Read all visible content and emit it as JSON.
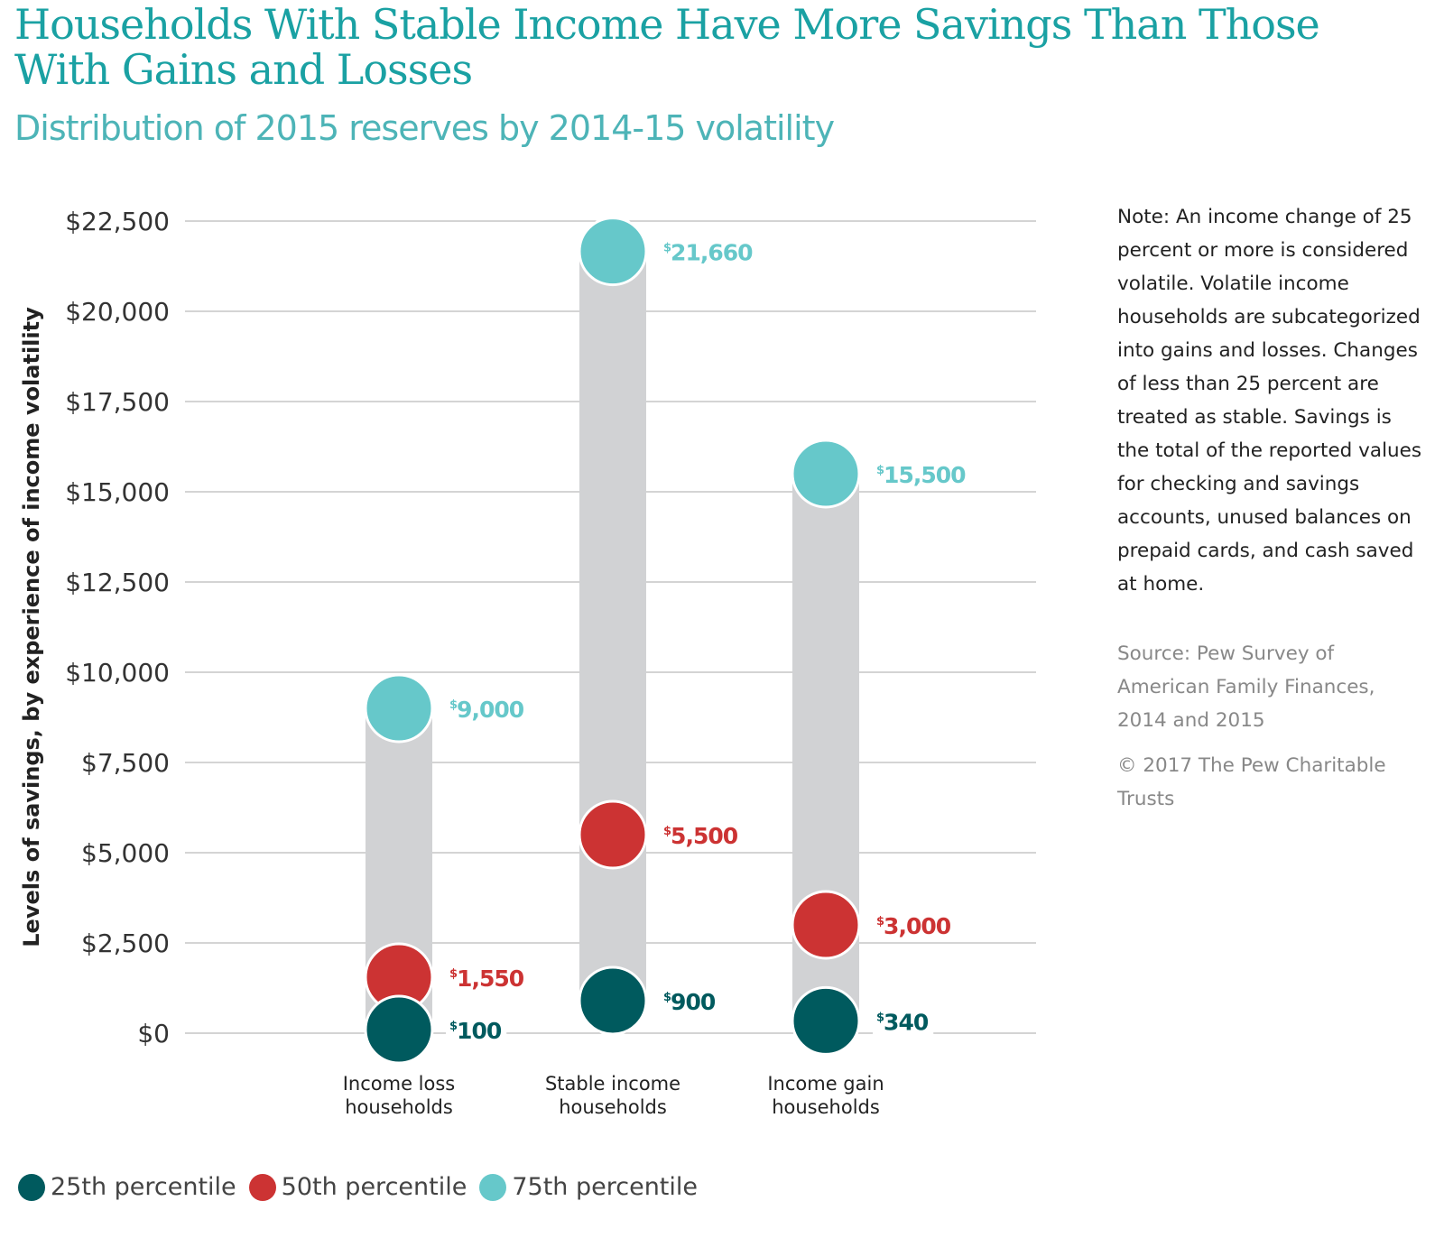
{
  "chart_data": {
    "type": "dot-range",
    "title": "Households With Stable Income Have More Savings Than Those With Gains and Losses",
    "subtitle": "Distribution of 2015 reserves by 2014-15 volatility",
    "ylabel": "Levels of savings, by experience of income volatility",
    "ylim": [
      0,
      22500
    ],
    "yticks": [
      0,
      2500,
      5000,
      7500,
      10000,
      12500,
      15000,
      17500,
      20000,
      22500
    ],
    "ytick_labels": [
      "$0",
      "$2,500",
      "$5,000",
      "$7,500",
      "$10,000",
      "$12,500",
      "$15,000",
      "$17,500",
      "$20,000",
      "$22,500"
    ],
    "grid": true,
    "categories": [
      "Income loss households",
      "Stable income households",
      "Income gain households"
    ],
    "category_lines": [
      [
        "Income loss",
        "households"
      ],
      [
        "Stable income",
        "households"
      ],
      [
        "Income gain",
        "households"
      ]
    ],
    "series": [
      {
        "name": "25th percentile",
        "color": "#005a5e",
        "values": [
          100,
          900,
          340
        ],
        "labels": [
          "100",
          "900",
          "340"
        ]
      },
      {
        "name": "50th percentile",
        "color": "#cc3333",
        "values": [
          1550,
          5500,
          3000
        ],
        "labels": [
          "1,550",
          "5,500",
          "3,000"
        ]
      },
      {
        "name": "75th percentile",
        "color": "#66c8ca",
        "values": [
          9000,
          21660,
          15500
        ],
        "labels": [
          "9,000",
          "21,660",
          "15,500"
        ]
      }
    ],
    "currency_symbol": "$",
    "legend_position": "bottom-left"
  },
  "note": "Note: An income change of 25 percent or more is considered volatile. Volatile income households are subcategorized into gains and losses. Changes of less than 25 percent are treated as stable. Savings is the total of the reported values for checking and savings accounts, unused balances on prepaid cards, and cash saved at home.",
  "source": "Source: Pew Survey of American Family Finances, 2014 and 2015",
  "copyright": "© 2017 The Pew Charitable Trusts"
}
